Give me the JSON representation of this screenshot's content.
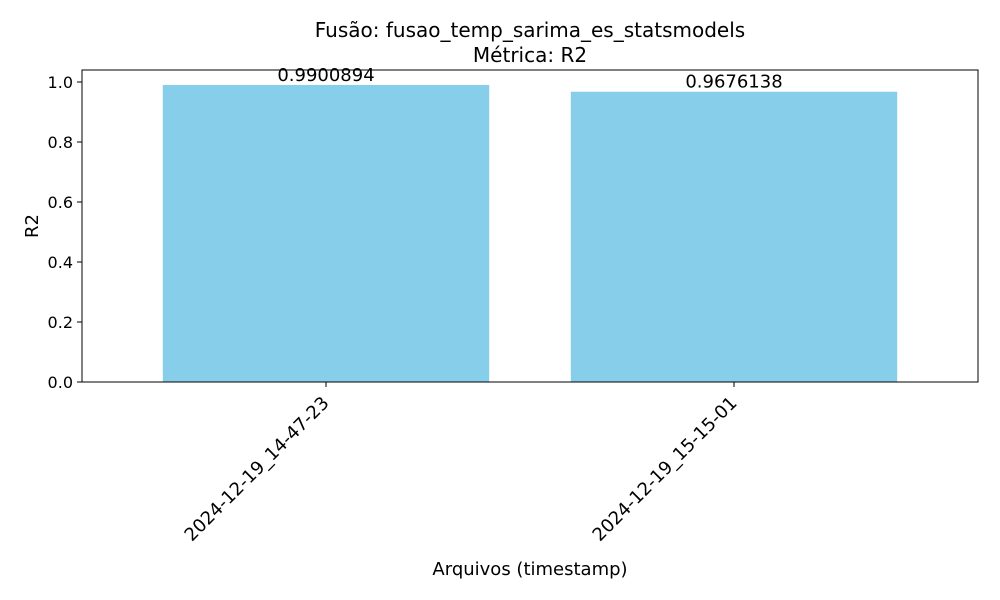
{
  "chart_data": {
    "type": "bar",
    "title": "Fusão: fusao_temp_sarima_es_statsmodels",
    "subtitle": "Métrica: R2",
    "xlabel": "Arquivos (timestamp)",
    "ylabel": "R2",
    "categories": [
      "2024-12-19_14-47-23",
      "2024-12-19_15-15-01"
    ],
    "values": [
      0.9900894,
      0.9676138
    ],
    "value_labels": [
      "0.9900894",
      "0.9676138"
    ],
    "ylim": [
      0,
      1.04
    ],
    "yticks": [
      0.0,
      0.2,
      0.4,
      0.6,
      0.8,
      1.0
    ],
    "ytick_labels": [
      "0.0",
      "0.2",
      "0.4",
      "0.6",
      "0.8",
      "1.0"
    ],
    "bar_color": "#87ceeb",
    "grid": false
  }
}
